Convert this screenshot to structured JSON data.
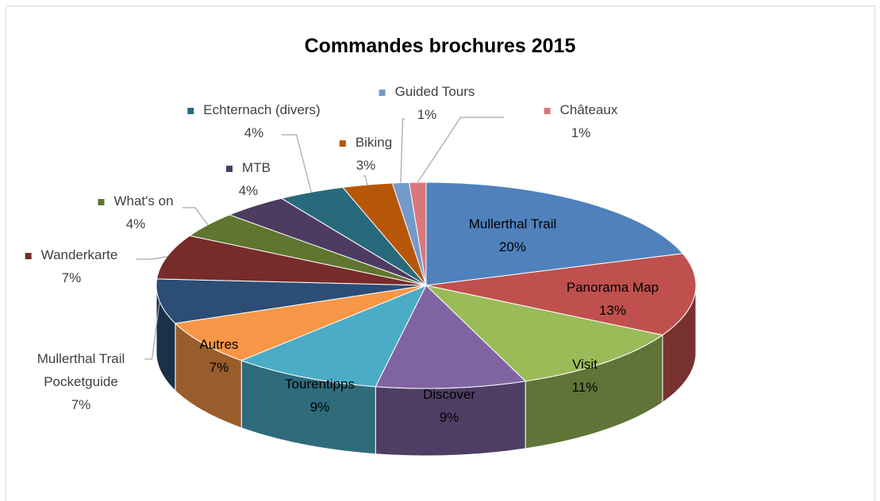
{
  "chart_data": {
    "type": "pie",
    "title": "Commandes brochures 2015",
    "categories": [
      "Mullerthal Trail",
      "Panorama Map",
      "Visit",
      "Discover",
      "Tourentipps",
      "Autres",
      "Mullerthal Trail Pocketguide",
      "Wanderkarte",
      "What's on",
      "MTB",
      "Echternach (divers)",
      "Biking",
      "Guided Tours",
      "Châteaux"
    ],
    "values": [
      20,
      13,
      11,
      9,
      9,
      7,
      7,
      7,
      4,
      4,
      4,
      3,
      1,
      1
    ],
    "value_labels": [
      "20%",
      "13%",
      "11%",
      "9%",
      "9%",
      "7%",
      "7%",
      "7%",
      "4%",
      "4%",
      "4%",
      "3%",
      "1%",
      "1%"
    ],
    "colors": [
      "#4f81bd",
      "#c0504d",
      "#9bbb59",
      "#8064a2",
      "#4bacc6",
      "#f79646",
      "#2c4d75",
      "#772c2a",
      "#5f7530",
      "#4d3b62",
      "#276a7c",
      "#b65708",
      "#729aca",
      "#d9777b"
    ]
  }
}
